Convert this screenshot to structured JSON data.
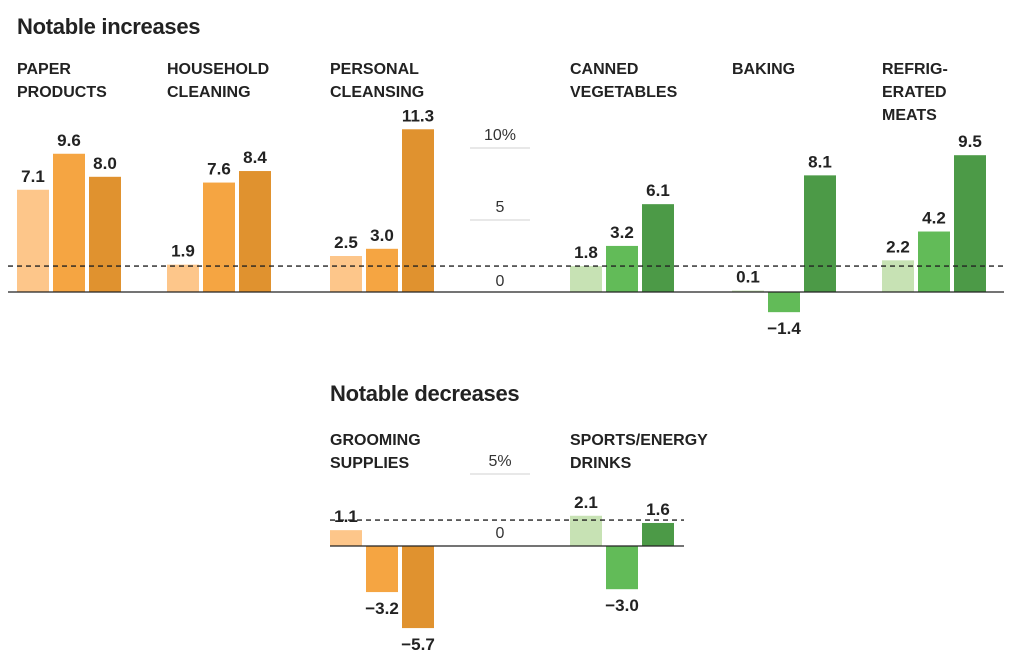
{
  "chart_data": [
    {
      "type": "bar",
      "title": "Notable increases",
      "reference_line_value": 1.8,
      "axis": {
        "ticks": [
          "10%",
          "5",
          "0"
        ],
        "tick_values": [
          10,
          5,
          0
        ]
      },
      "groups": [
        {
          "label": [
            "PAPER",
            "PRODUCTS"
          ],
          "color": "orange",
          "values": [
            7.1,
            9.6,
            8.0
          ],
          "labels": [
            "7.1",
            "9.6",
            "8.0"
          ]
        },
        {
          "label": [
            "HOUSEHOLD",
            "CLEANING"
          ],
          "color": "orange",
          "values": [
            1.9,
            7.6,
            8.4
          ],
          "labels": [
            "1.9",
            "7.6",
            "8.4"
          ]
        },
        {
          "label": [
            "PERSONAL",
            "CLEANSING"
          ],
          "color": "orange",
          "values": [
            2.5,
            3.0,
            11.3
          ],
          "labels": [
            "2.5",
            "3.0",
            "11.3"
          ]
        },
        {
          "label": [
            "CANNED",
            "VEGETABLES"
          ],
          "color": "green",
          "values": [
            1.8,
            3.2,
            6.1
          ],
          "labels": [
            "1.8",
            "3.2",
            "6.1"
          ]
        },
        {
          "label": [
            "BAKING"
          ],
          "color": "green",
          "values": [
            0.1,
            -1.4,
            8.1
          ],
          "labels": [
            "0.1",
            "−1.4",
            "8.1"
          ]
        },
        {
          "label": [
            "REFRIG-",
            "ERATED",
            "MEATS"
          ],
          "color": "green",
          "values": [
            2.2,
            4.2,
            9.5
          ],
          "labels": [
            "2.2",
            "4.2",
            "9.5"
          ]
        }
      ]
    },
    {
      "type": "bar",
      "title": "Notable decreases",
      "reference_line_value": 1.8,
      "axis": {
        "ticks": [
          "5%",
          "0"
        ],
        "tick_values": [
          5,
          0
        ]
      },
      "groups": [
        {
          "label": [
            "GROOMING",
            "SUPPLIES"
          ],
          "color": "orange",
          "values": [
            1.1,
            -3.2,
            -5.7
          ],
          "labels": [
            "1.1",
            "−3.2",
            "−5.7"
          ]
        },
        {
          "label": [
            "SPORTS/ENERGY",
            "DRINKS"
          ],
          "color": "green",
          "values": [
            2.1,
            -3.0,
            1.6
          ],
          "labels": [
            "2.1",
            "−3.0",
            "1.6"
          ]
        }
      ]
    }
  ],
  "colors": {
    "orange": [
      "#fdc68a",
      "#f5a542",
      "#e0922f"
    ],
    "green": [
      "#c7e2b4",
      "#62bb58",
      "#4c9a47"
    ],
    "text": "#222222",
    "tick": "#d2d2d2"
  }
}
